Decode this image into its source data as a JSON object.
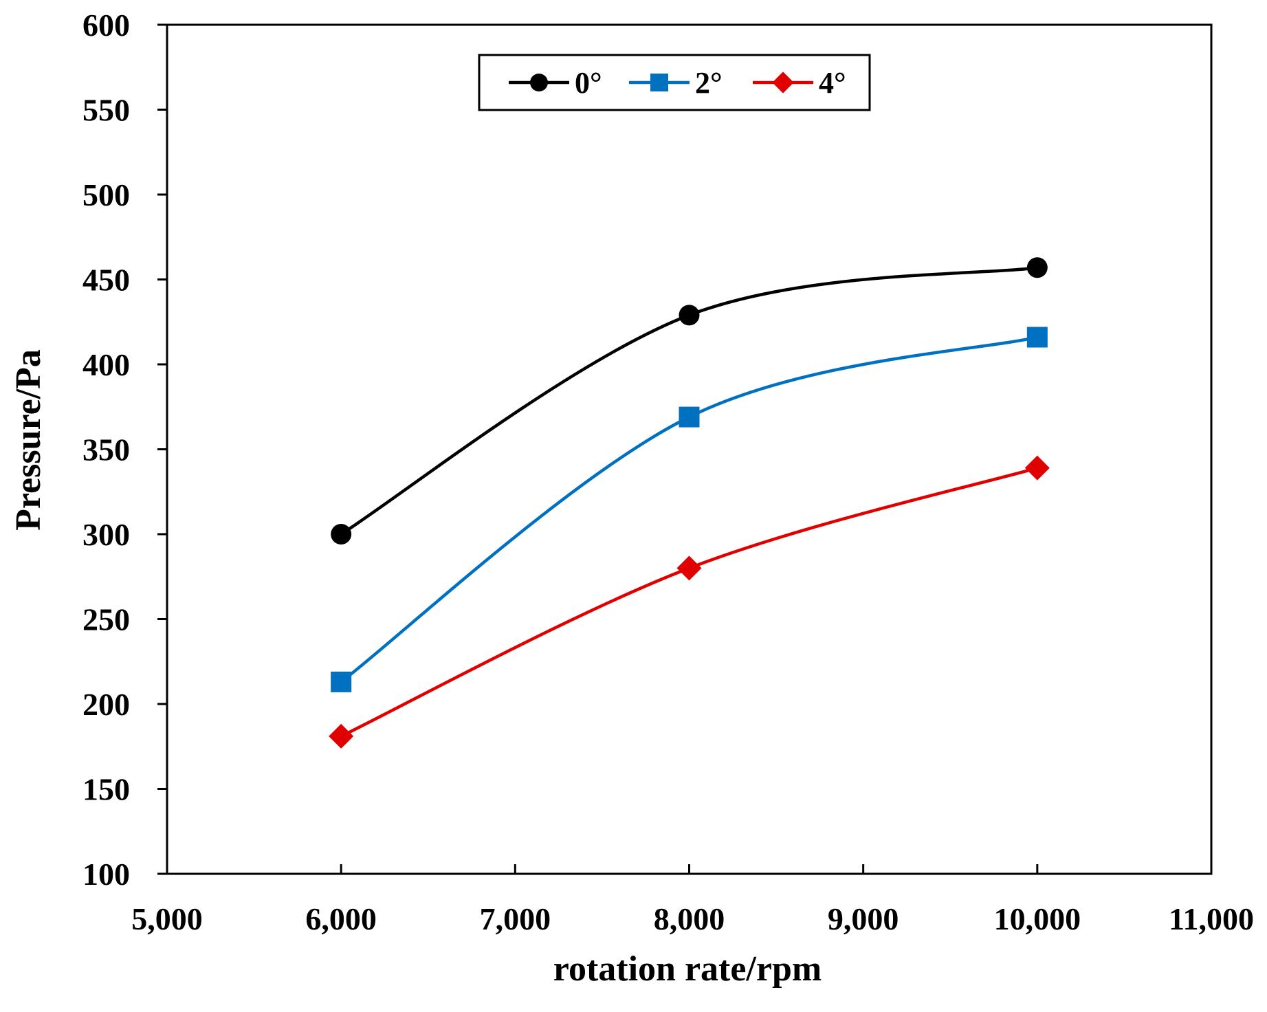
{
  "chart_data": {
    "type": "line",
    "title": "",
    "xlabel": "rotation rate/rpm",
    "ylabel": "Pressure/Pa",
    "xlim": [
      5000,
      11000
    ],
    "ylim": [
      100,
      600
    ],
    "x_ticks": [
      5000,
      6000,
      7000,
      8000,
      9000,
      10000,
      11000
    ],
    "x_tick_labels": [
      "5,000",
      "6,000",
      "7,000",
      "8,000",
      "9,000",
      "10,000",
      "11,000"
    ],
    "y_ticks": [
      100,
      150,
      200,
      250,
      300,
      350,
      400,
      450,
      500,
      550,
      600
    ],
    "y_tick_labels": [
      "100",
      "150",
      "200",
      "250",
      "300",
      "350",
      "400",
      "450",
      "500",
      "550",
      "600"
    ],
    "grid": false,
    "smooth": true,
    "legend_position": "top-center",
    "x": [
      6000,
      8000,
      10000
    ],
    "series": [
      {
        "name": "0°",
        "values": [
          300,
          429,
          457
        ],
        "color": "#000000",
        "marker": "circle"
      },
      {
        "name": "2°",
        "values": [
          213,
          369,
          416
        ],
        "color": "#0070c0",
        "marker": "square"
      },
      {
        "name": "4°",
        "values": [
          181,
          280,
          339
        ],
        "color": "#e00000",
        "marker": "diamond"
      }
    ]
  }
}
